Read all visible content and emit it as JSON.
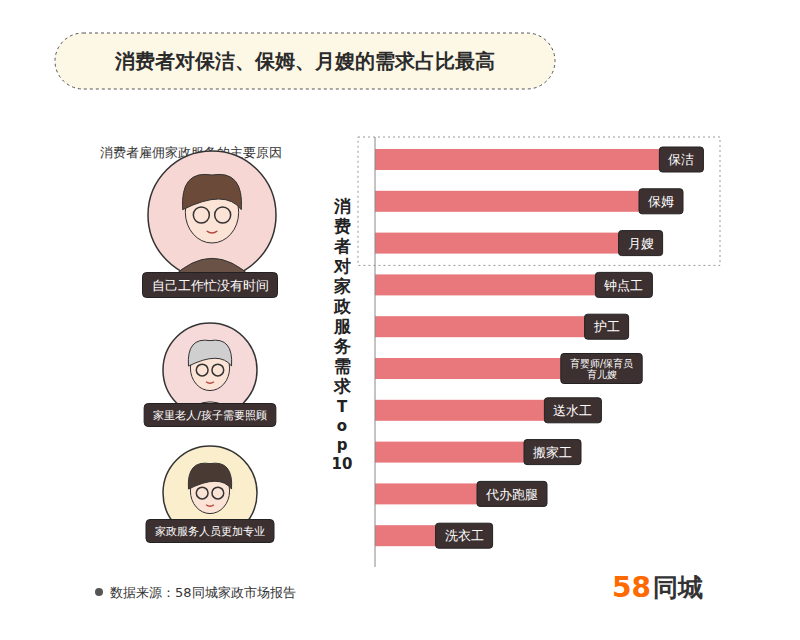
{
  "chart_data": {
    "type": "bar",
    "orientation": "horizontal",
    "title": "消费者对保洁、保姆、月嫂的需求占比最高",
    "subtitle": "消费者雇佣家政服务的主要原因",
    "reasons": [
      "自己工作忙没有时间",
      "家里老人/孩子需要照顾",
      "家政服务人员更加专业"
    ],
    "ylabel": "消费者对家政服务需求Top10",
    "categories": [
      "保洁",
      "保姆",
      "月嫂",
      "钟点工",
      "护工",
      "育婴师/保育员\n育儿嫂",
      "送水工",
      "搬家工",
      "代办跑腿",
      "洗衣工"
    ],
    "values": [
      96,
      90,
      84,
      81,
      74,
      78,
      66,
      60,
      50,
      34
    ],
    "xlim": [
      0,
      100
    ],
    "tick_labels": false,
    "grid": false,
    "color": "#e8787c",
    "source": "数据来源：58同城家政市场报告",
    "logo": [
      "58",
      "同城"
    ]
  }
}
